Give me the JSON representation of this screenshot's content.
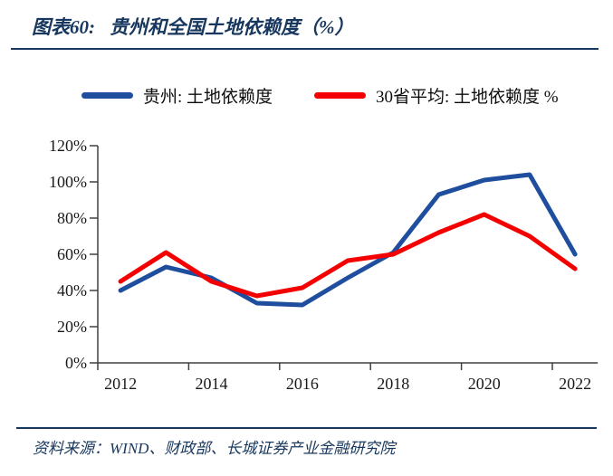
{
  "figure": {
    "label": "图表60:",
    "title": "贵州和全国土地依赖度（%）"
  },
  "legend": [
    {
      "label": "贵州: 土地依赖度",
      "color": "#1F4E9E"
    },
    {
      "label": "30省平均: 土地依赖度 %",
      "color": "#F40000"
    }
  ],
  "chart_data": {
    "type": "line",
    "x": [
      2012,
      2013,
      2014,
      2015,
      2016,
      2017,
      2018,
      2019,
      2020,
      2021,
      2022
    ],
    "x_tick_labels": [
      "2012",
      "2014",
      "2016",
      "2018",
      "2020",
      "2022"
    ],
    "series": [
      {
        "name": "贵州: 土地依赖度",
        "color": "#1F4E9E",
        "values": [
          40,
          53,
          47,
          33,
          32,
          47,
          61,
          93,
          101,
          104,
          60
        ]
      },
      {
        "name": "30省平均: 土地依赖度 %",
        "color": "#F40000",
        "values": [
          45,
          61,
          45,
          37,
          41.5,
          56.5,
          60,
          72,
          82,
          70,
          52
        ]
      }
    ],
    "ylim": [
      0,
      120
    ],
    "y_ticks": [
      "0%",
      "20%",
      "40%",
      "60%",
      "80%",
      "100%",
      "120%"
    ],
    "grid": false,
    "legend_position": "top",
    "axis_color": "#404040",
    "tick_label_color": "#1a1a1a"
  },
  "footer": {
    "source": "资料来源：WIND、财政部、长城证券产业金融研究院"
  }
}
